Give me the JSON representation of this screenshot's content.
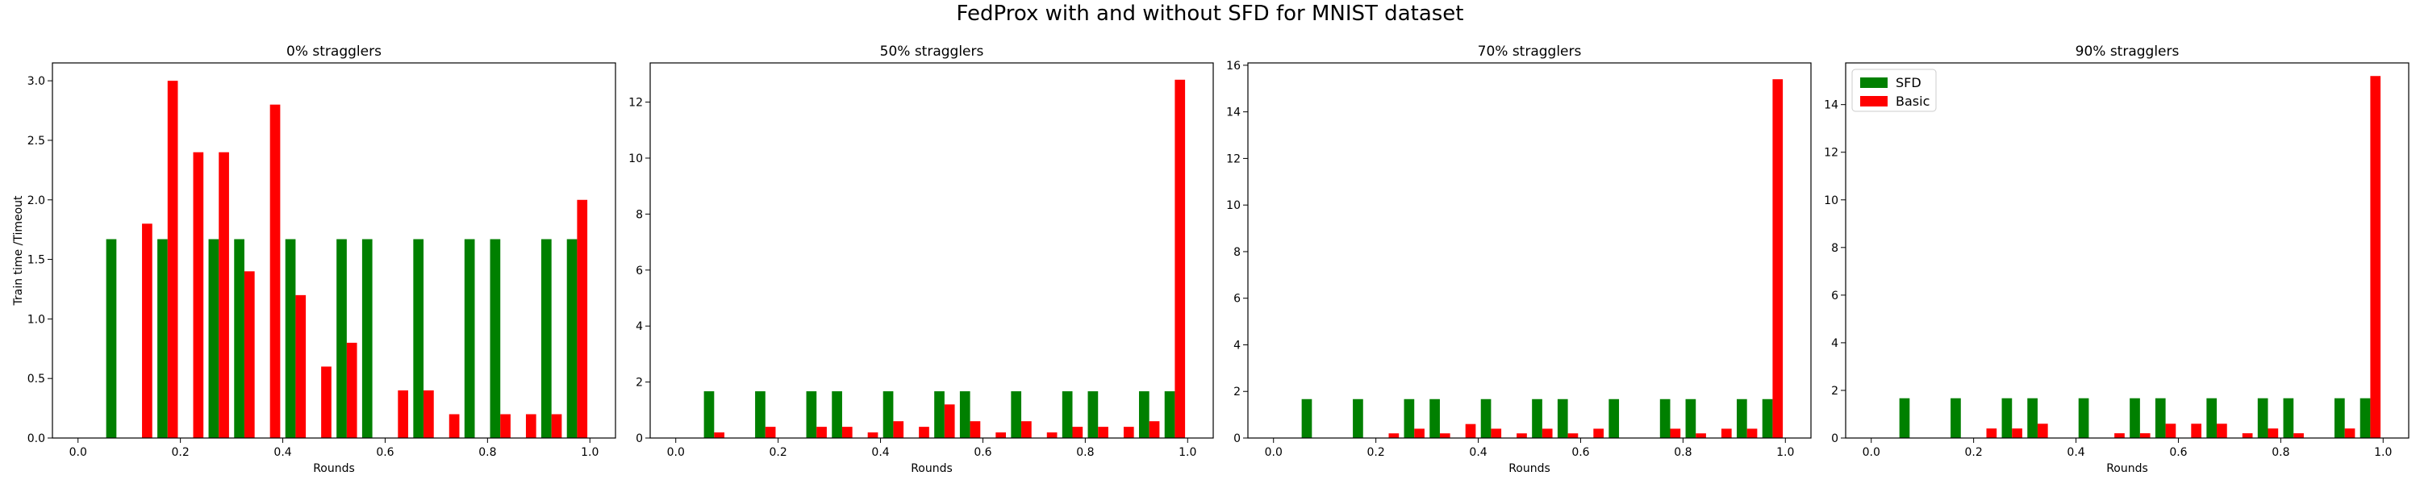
{
  "figure": {
    "title": "FedProx with and without SFD for MNIST dataset"
  },
  "colors": {
    "SFD": "#008000",
    "Basic": "#ff0000",
    "axes": "#000000",
    "background": "#ffffff"
  },
  "chart_data": [
    {
      "type": "bar",
      "title": "0% stragglers",
      "xlabel": "Rounds",
      "ylabel": "Train time /Timeout",
      "xlim": [
        -0.05,
        1.05
      ],
      "ylim": [
        0,
        3.15
      ],
      "xticks": [
        "0.0",
        "0.2",
        "0.4",
        "0.6",
        "0.8",
        "1.0"
      ],
      "yticks": [
        "0.0",
        "0.5",
        "1.0",
        "1.5",
        "2.0",
        "2.5",
        "3.0"
      ],
      "legend": null,
      "bin_edges": [
        0.05,
        0.1,
        0.15,
        0.2,
        0.25,
        0.3,
        0.35,
        0.4,
        0.45,
        0.5,
        0.55,
        0.6,
        0.65,
        0.7,
        0.75,
        0.8,
        0.85,
        0.9,
        0.95,
        1.0
      ],
      "series": [
        {
          "name": "SFD",
          "values": [
            1.67,
            0,
            1.67,
            0,
            1.67,
            1.67,
            0,
            1.67,
            0,
            1.67,
            1.67,
            0,
            1.67,
            0,
            1.67,
            1.67,
            0,
            1.67,
            1.67
          ]
        },
        {
          "name": "Basic",
          "values": [
            0,
            1.8,
            3.0,
            2.4,
            2.4,
            1.4,
            2.8,
            1.2,
            0.6,
            0.8,
            0,
            0.4,
            0.4,
            0.2,
            0,
            0.2,
            0.2,
            0.2,
            2.0
          ]
        }
      ]
    },
    {
      "type": "bar",
      "title": "50% stragglers",
      "xlabel": "Rounds",
      "ylabel": "",
      "xlim": [
        -0.05,
        1.05
      ],
      "ylim": [
        0,
        13.4
      ],
      "xticks": [
        "0.0",
        "0.2",
        "0.4",
        "0.6",
        "0.8",
        "1.0"
      ],
      "yticks": [
        "0",
        "2",
        "4",
        "6",
        "8",
        "10",
        "12"
      ],
      "legend": null,
      "bin_edges": [
        0.05,
        0.1,
        0.15,
        0.2,
        0.25,
        0.3,
        0.35,
        0.4,
        0.45,
        0.5,
        0.55,
        0.6,
        0.65,
        0.7,
        0.75,
        0.8,
        0.85,
        0.9,
        0.95,
        1.0
      ],
      "series": [
        {
          "name": "SFD",
          "values": [
            1.67,
            0,
            1.67,
            0,
            1.67,
            1.67,
            0,
            1.67,
            0,
            1.67,
            1.67,
            0,
            1.67,
            0,
            1.67,
            1.67,
            0,
            1.67,
            1.67
          ]
        },
        {
          "name": "Basic",
          "values": [
            0.2,
            0,
            0.4,
            0,
            0.4,
            0.4,
            0.2,
            0.6,
            0.4,
            1.2,
            0.6,
            0.2,
            0.6,
            0.2,
            0.4,
            0.4,
            0.4,
            0.6,
            12.8
          ]
        }
      ]
    },
    {
      "type": "bar",
      "title": "70% stragglers",
      "xlabel": "Rounds",
      "ylabel": "",
      "xlim": [
        -0.05,
        1.05
      ],
      "ylim": [
        0,
        16.1
      ],
      "xticks": [
        "0.0",
        "0.2",
        "0.4",
        "0.6",
        "0.8",
        "1.0"
      ],
      "yticks": [
        "0",
        "2",
        "4",
        "6",
        "8",
        "10",
        "12",
        "14",
        "16"
      ],
      "legend": null,
      "bin_edges": [
        0.05,
        0.1,
        0.15,
        0.2,
        0.25,
        0.3,
        0.35,
        0.4,
        0.45,
        0.5,
        0.55,
        0.6,
        0.65,
        0.7,
        0.75,
        0.8,
        0.85,
        0.9,
        0.95,
        1.0
      ],
      "series": [
        {
          "name": "SFD",
          "values": [
            1.67,
            0,
            1.67,
            0,
            1.67,
            1.67,
            0,
            1.67,
            0,
            1.67,
            1.67,
            0,
            1.67,
            0,
            1.67,
            1.67,
            0,
            1.67,
            1.67
          ]
        },
        {
          "name": "Basic",
          "values": [
            0,
            0,
            0,
            0.2,
            0.4,
            0.2,
            0.6,
            0.4,
            0.2,
            0.4,
            0.2,
            0.4,
            0,
            0,
            0.4,
            0.2,
            0.4,
            0.4,
            15.4
          ]
        }
      ]
    },
    {
      "type": "bar",
      "title": "90% stragglers",
      "xlabel": "Rounds",
      "ylabel": "",
      "xlim": [
        -0.05,
        1.05
      ],
      "ylim": [
        0,
        15.75
      ],
      "xticks": [
        "0.0",
        "0.2",
        "0.4",
        "0.6",
        "0.8",
        "1.0"
      ],
      "yticks": [
        "0",
        "2",
        "4",
        "6",
        "8",
        "10",
        "12",
        "14"
      ],
      "legend": {
        "placement": "upper left",
        "entries": [
          "SFD",
          "Basic"
        ]
      },
      "bin_edges": [
        0.05,
        0.1,
        0.15,
        0.2,
        0.25,
        0.3,
        0.35,
        0.4,
        0.45,
        0.5,
        0.55,
        0.6,
        0.65,
        0.7,
        0.75,
        0.8,
        0.85,
        0.9,
        0.95,
        1.0
      ],
      "series": [
        {
          "name": "SFD",
          "values": [
            1.67,
            0,
            1.67,
            0,
            1.67,
            1.67,
            0,
            1.67,
            0,
            1.67,
            1.67,
            0,
            1.67,
            0,
            1.67,
            1.67,
            0,
            1.67,
            1.67
          ]
        },
        {
          "name": "Basic",
          "values": [
            0,
            0,
            0,
            0.4,
            0.4,
            0.6,
            0,
            0,
            0.2,
            0.2,
            0.6,
            0.6,
            0.6,
            0.2,
            0.4,
            0.2,
            0,
            0.4,
            15.2
          ]
        }
      ]
    }
  ]
}
